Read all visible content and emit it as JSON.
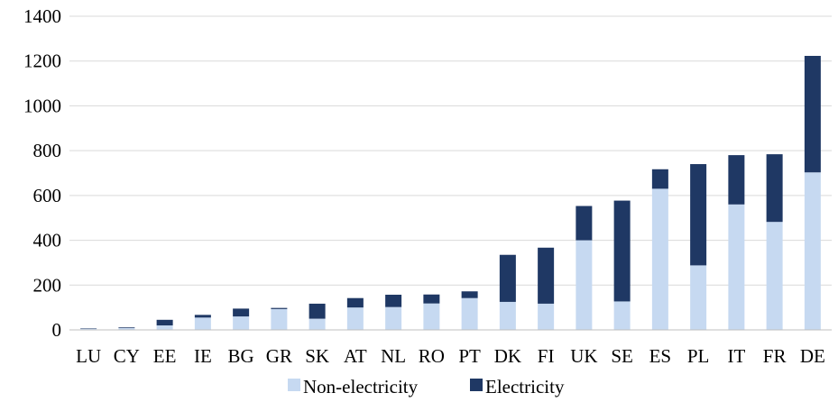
{
  "chart_data": {
    "type": "bar",
    "stacked": true,
    "categories": [
      "LU",
      "CY",
      "EE",
      "IE",
      "BG",
      "GR",
      "SK",
      "AT",
      "NL",
      "RO",
      "PT",
      "DK",
      "FI",
      "UK",
      "SE",
      "ES",
      "PL",
      "IT",
      "FR",
      "DE"
    ],
    "series": [
      {
        "name": "Non-electricity",
        "color": "#c6d9f1",
        "values": [
          5,
          8,
          20,
          55,
          60,
          93,
          50,
          100,
          102,
          118,
          142,
          125,
          117,
          400,
          127,
          630,
          288,
          560,
          482,
          703
        ]
      },
      {
        "name": "Electricity",
        "color": "#1f3864",
        "values": [
          2,
          3,
          25,
          12,
          35,
          5,
          67,
          42,
          55,
          40,
          30,
          210,
          250,
          153,
          450,
          87,
          452,
          220,
          302,
          520
        ]
      }
    ],
    "yticks": [
      "0",
      "200",
      "400",
      "600",
      "800",
      "1000",
      "1200",
      "1400"
    ],
    "ylim": [
      0,
      1400
    ],
    "grid": true,
    "legend": "bottom"
  }
}
